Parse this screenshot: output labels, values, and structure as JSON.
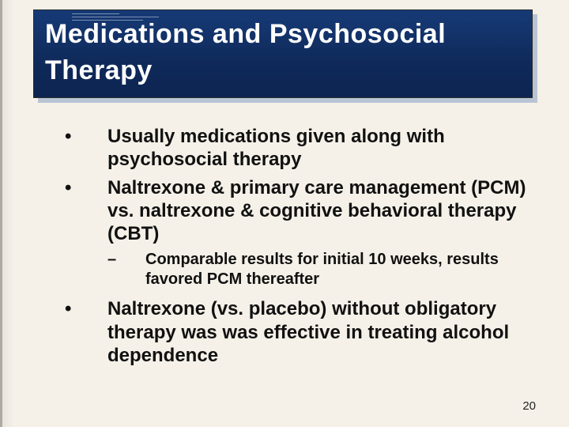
{
  "colors": {
    "background": "#f5f1e8",
    "title_bg_top": "#163a77",
    "title_bg_bottom": "#0c2451",
    "title_shadow": "#b8c4d4",
    "title_text": "#ffffff",
    "body_text": "#111111"
  },
  "typography": {
    "title_font": "Arial Black",
    "title_size_pt": 26,
    "body_font": "Arial",
    "body_size_pt": 18,
    "sub_size_pt": 15,
    "body_weight": "bold"
  },
  "title": "Medications and Psychosocial Therapy",
  "bullets": [
    {
      "text": "Usually medications given along with psychosocial therapy"
    },
    {
      "text": "Naltrexone & primary care management (PCM) vs. naltrexone & cognitive behavioral therapy (CBT)",
      "sub": [
        {
          "text": "Comparable results for initial 10 weeks, results favored PCM thereafter"
        }
      ]
    },
    {
      "text": "Naltrexone (vs. placebo) without obligatory therapy was was effective in treating alcohol dependence"
    }
  ],
  "page_number": "20"
}
